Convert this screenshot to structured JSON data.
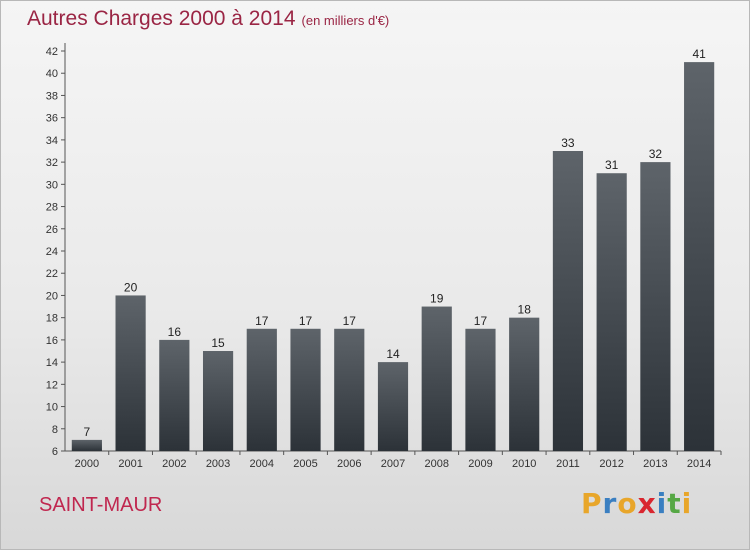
{
  "header": {
    "title": "Autres Charges 2000 à 2014",
    "subtitle": "(en milliers d'€)"
  },
  "footer": {
    "location": "SAINT-MAUR",
    "logo_letters": [
      "P",
      "r",
      "o",
      "x",
      "i",
      "t",
      "i"
    ]
  },
  "colors": {
    "title": "#9a2544",
    "location": "#c0274f",
    "bar_top": "#5e646a",
    "bar_bottom": "#2c3238",
    "logo": [
      "#e8a62a",
      "#3a7fc1",
      "#e8a62a",
      "#d9262f",
      "#3a7fc1",
      "#56a845",
      "#e8a62a"
    ]
  },
  "chart_data": {
    "type": "bar",
    "categories": [
      "2000",
      "2001",
      "2002",
      "2003",
      "2004",
      "2005",
      "2006",
      "2007",
      "2008",
      "2009",
      "2010",
      "2011",
      "2012",
      "2013",
      "2014"
    ],
    "values": [
      7,
      20,
      16,
      15,
      17,
      17,
      17,
      14,
      19,
      17,
      18,
      33,
      31,
      32,
      41
    ],
    "ylim": [
      6,
      42
    ],
    "yticks": [
      6,
      8,
      10,
      12,
      14,
      16,
      18,
      20,
      22,
      24,
      26,
      28,
      30,
      32,
      34,
      36,
      38,
      40,
      42
    ],
    "grid": false,
    "data_labels": true
  }
}
